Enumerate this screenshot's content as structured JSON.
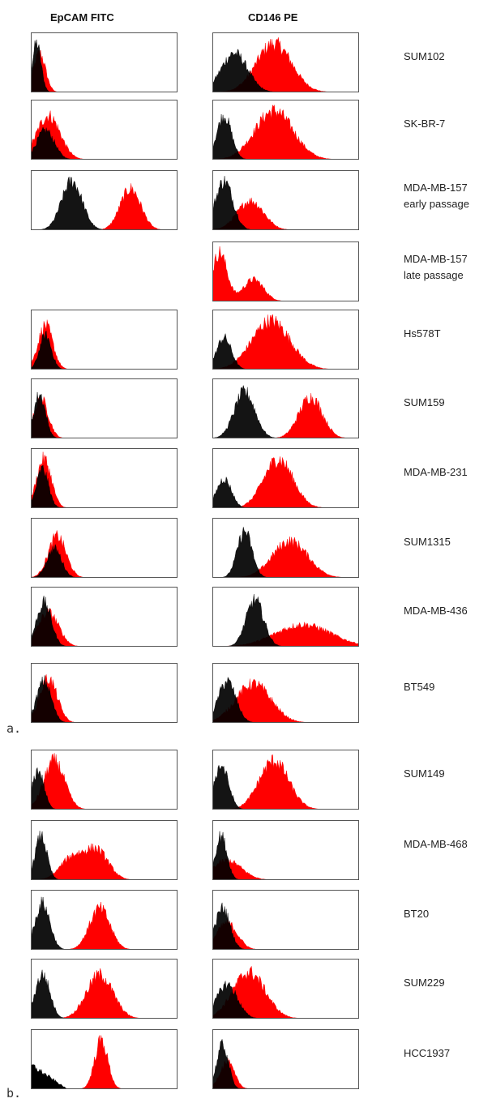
{
  "headers": {
    "left": "EpCAM FITC",
    "right": "CD146 PE"
  },
  "panel_labels": [
    "a.",
    "b."
  ],
  "colors": {
    "control": "#000000",
    "stained": "#ff0000",
    "frame": "#555555"
  },
  "chart_data": {
    "type": "area",
    "description_axis": "fluorescence intensity histograms (no printed axes)",
    "series_legend": [],
    "rows": [
      {
        "label": "SUM102",
        "panel": "a",
        "epcam": {
          "control": [
            0.04,
            0.03,
            1.0
          ],
          "stained": [
            0.06,
            0.04,
            0.8
          ]
        },
        "cd146": {
          "control": [
            0.15,
            0.09,
            0.8
          ],
          "stained": [
            0.42,
            0.12,
            1.0
          ]
        }
      },
      {
        "label": "SK-BR-7",
        "panel": "a",
        "epcam": {
          "control": [
            0.1,
            0.06,
            0.6
          ],
          "stained": [
            0.12,
            0.08,
            0.9
          ]
        },
        "cd146": {
          "control": [
            0.08,
            0.05,
            0.9
          ],
          "stained": [
            0.42,
            0.13,
            1.0
          ]
        }
      },
      {
        "label": "MDA-MB-157\nearly passage",
        "panel": "a",
        "epcam": {
          "control": [
            0.28,
            0.07,
            1.0
          ],
          "stained": [
            0.68,
            0.07,
            0.85
          ]
        },
        "cd146": {
          "control": [
            0.08,
            0.06,
            1.0
          ],
          "stained": [
            0.26,
            0.09,
            0.6
          ]
        }
      },
      {
        "label": "MDA-MB-157\nlate passage",
        "panel": "a",
        "epcam": null,
        "cd146": {
          "control": null,
          "stained_multi": [
            [
              0.05,
              0.05,
              1.0
            ],
            [
              0.28,
              0.07,
              0.45
            ]
          ]
        }
      },
      {
        "label": "Hs578T",
        "panel": "a",
        "epcam": {
          "control": [
            0.1,
            0.04,
            0.7
          ],
          "stained": [
            0.1,
            0.05,
            0.9
          ]
        },
        "cd146": {
          "control": [
            0.08,
            0.05,
            0.65
          ],
          "stained": [
            0.4,
            0.13,
            1.0
          ]
        }
      },
      {
        "label": "SUM159",
        "panel": "a",
        "epcam": {
          "control": [
            0.06,
            0.04,
            0.9
          ],
          "stained": [
            0.07,
            0.05,
            0.8
          ]
        },
        "cd146": {
          "control": [
            0.22,
            0.07,
            0.95
          ],
          "stained": [
            0.67,
            0.08,
            0.85
          ]
        }
      },
      {
        "label": "MDA-MB-231",
        "panel": "a",
        "epcam": {
          "control": [
            0.08,
            0.04,
            0.8
          ],
          "stained": [
            0.09,
            0.05,
            1.0
          ]
        },
        "cd146": {
          "control": [
            0.08,
            0.05,
            0.6
          ],
          "stained": [
            0.45,
            0.1,
            1.0
          ]
        }
      },
      {
        "label": "SUM1315",
        "panel": "a",
        "epcam": {
          "control": [
            0.16,
            0.05,
            0.6
          ],
          "stained": [
            0.18,
            0.06,
            0.85
          ]
        },
        "cd146": {
          "control": [
            0.22,
            0.05,
            0.95
          ],
          "stained": [
            0.53,
            0.12,
            0.75
          ]
        }
      },
      {
        "label": "MDA-MB-436",
        "panel": "a",
        "epcam": {
          "control": [
            0.09,
            0.05,
            0.9
          ],
          "stained": [
            0.12,
            0.07,
            0.7
          ]
        },
        "cd146": {
          "control": [
            0.29,
            0.06,
            0.95
          ],
          "stained": [
            0.62,
            0.19,
            0.45
          ]
        }
      },
      {
        "label": "BT549",
        "panel": "a",
        "epcam": {
          "control": [
            0.09,
            0.05,
            0.85
          ],
          "stained": [
            0.12,
            0.06,
            0.9
          ]
        },
        "cd146": {
          "control": [
            0.1,
            0.06,
            0.85
          ],
          "stained": [
            0.28,
            0.12,
            0.8
          ]
        }
      },
      {
        "label": "SUM149",
        "panel": "b",
        "epcam": {
          "control": [
            0.05,
            0.04,
            0.8
          ],
          "stained": [
            0.16,
            0.07,
            1.0
          ]
        },
        "cd146": {
          "control": [
            0.06,
            0.05,
            0.9
          ],
          "stained": [
            0.42,
            0.1,
            1.0
          ]
        }
      },
      {
        "label": "MDA-MB-468",
        "panel": "b",
        "epcam": {
          "control": [
            0.07,
            0.04,
            0.9
          ],
          "stained_multi": [
            [
              0.28,
              0.08,
              0.45
            ],
            [
              0.45,
              0.08,
              0.6
            ]
          ]
        },
        "cd146": {
          "control": [
            0.06,
            0.04,
            0.9
          ],
          "stained": [
            0.1,
            0.1,
            0.4
          ]
        }
      },
      {
        "label": "BT20",
        "panel": "b",
        "epcam": {
          "control": [
            0.08,
            0.05,
            0.95
          ],
          "stained": [
            0.47,
            0.07,
            0.85
          ]
        },
        "cd146": {
          "control": [
            0.07,
            0.05,
            0.85
          ],
          "stained": [
            0.1,
            0.07,
            0.55
          ]
        }
      },
      {
        "label": "SUM229",
        "panel": "b",
        "epcam": {
          "control": [
            0.08,
            0.05,
            0.9
          ],
          "stained": [
            0.47,
            0.09,
            0.9
          ]
        },
        "cd146": {
          "control": [
            0.1,
            0.07,
            0.7
          ],
          "stained": [
            0.25,
            0.11,
            0.95
          ]
        }
      },
      {
        "label": "HCC1937",
        "panel": "b",
        "epcam": {
          "control_decay": [
            0.0,
            0.25,
            0.5
          ],
          "stained": [
            0.48,
            0.045,
            1.0
          ]
        },
        "cd146": {
          "control": [
            0.07,
            0.04,
            0.9
          ],
          "stained": [
            0.1,
            0.05,
            0.55
          ]
        }
      }
    ]
  }
}
